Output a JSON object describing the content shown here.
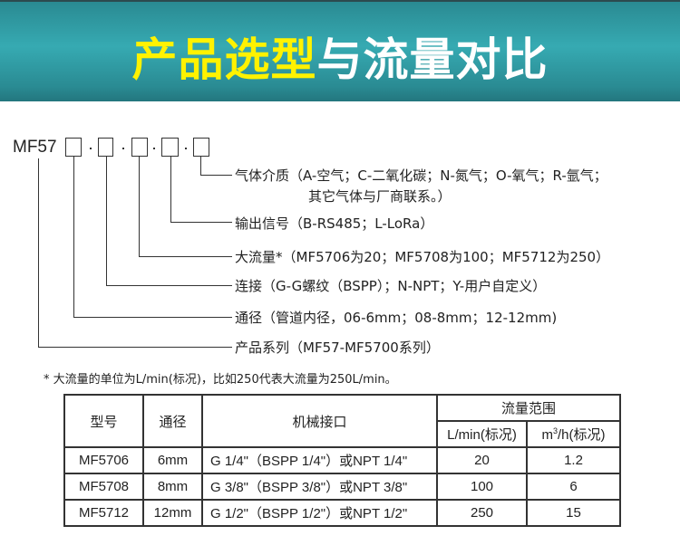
{
  "header": {
    "title_highlight": "产品选型",
    "title_rest": "与流量对比",
    "accent": "#fff200",
    "banner_color": "#36aab2"
  },
  "code": {
    "prefix": "MF57",
    "separator": "-",
    "labels": [
      "气体介质（A-空气；C-二氧化碳；N-氮气；O-氧气；R-氩气；",
      "其它气体与厂商联系。）",
      "输出信号（B-RS485；L-LoRa）",
      "大流量*（MF5706为20；MF5708为100；MF5712为250）",
      "连接（G-G螺纹（BSPP）；N-NPT；Y-用户自定义）",
      "通径（管道内径，06-6mm；08-8mm；12-12mm)",
      "产品系列（MF57-MF5700系列）"
    ]
  },
  "note": "* 大流量的单位为L/min(标况)，比如250代表大流量为250L/min。",
  "table": {
    "headers": {
      "model": "型号",
      "bore": "通径",
      "interface": "机械接口",
      "flow_range": "流量范围",
      "lmin": "L/min(标况)",
      "m3h_m": "m",
      "m3h_sup": "3",
      "m3h_rest": "/h(标况)"
    },
    "rows": [
      [
        "MF5706",
        "6mm",
        "G 1/4\"（BSPP 1/4\"）或NPT 1/4\"",
        "20",
        "1.2"
      ],
      [
        "MF5708",
        "8mm",
        "G 3/8\"（BSPP 3/8\"）或NPT 3/8\"",
        "100",
        "6"
      ],
      [
        "MF5712",
        "12mm",
        "G 1/2\"（BSPP 1/2\"）或NPT 1/2\"",
        "250",
        "15"
      ]
    ]
  }
}
